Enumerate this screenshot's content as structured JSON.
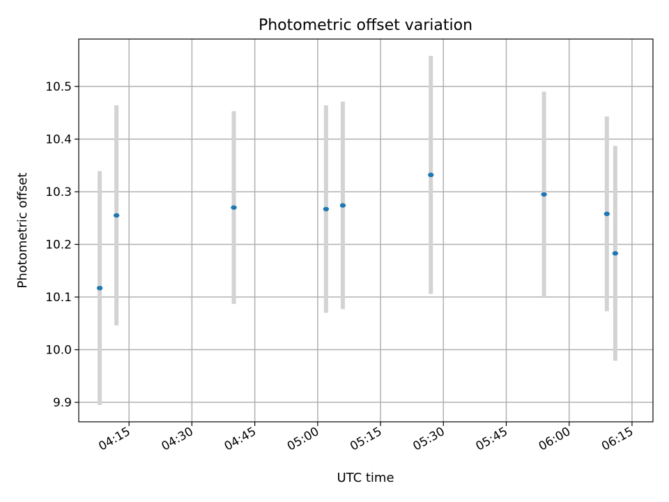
{
  "chart_data": {
    "type": "scatter",
    "title": "Photometric offset variation",
    "xlabel": "UTC time",
    "ylabel": "Photometric offset",
    "x_axis_type": "time",
    "xlim": [
      "04:03",
      "06:20"
    ],
    "ylim": [
      9.863,
      10.59
    ],
    "grid": true,
    "legend": "none",
    "x_ticks": [
      "04:15",
      "04:30",
      "04:45",
      "05:00",
      "05:15",
      "05:30",
      "05:45",
      "06:00",
      "06:15"
    ],
    "y_ticks": [
      9.9,
      10.0,
      10.1,
      10.2,
      10.3,
      10.4,
      10.5
    ],
    "y_tick_labels": [
      "9.9",
      "10.0",
      "10.1",
      "10.2",
      "10.3",
      "10.4",
      "10.5"
    ],
    "series": [
      {
        "marker_color": "#1f77b4",
        "errorbar_color": "#d3d3d3",
        "points": [
          {
            "x": "04:08",
            "y": 10.117,
            "yerr": 0.222
          },
          {
            "x": "04:12",
            "y": 10.255,
            "yerr": 0.209
          },
          {
            "x": "04:40",
            "y": 10.27,
            "yerr": 0.183
          },
          {
            "x": "05:02",
            "y": 10.267,
            "yerr": 0.197
          },
          {
            "x": "05:06",
            "y": 10.274,
            "yerr": 0.197
          },
          {
            "x": "05:27",
            "y": 10.332,
            "yerr": 0.226
          },
          {
            "x": "05:54",
            "y": 10.295,
            "yerr": 0.195
          },
          {
            "x": "06:09",
            "y": 10.258,
            "yerr": 0.185
          },
          {
            "x": "06:11",
            "y": 10.183,
            "yerr": 0.204
          }
        ]
      }
    ]
  }
}
